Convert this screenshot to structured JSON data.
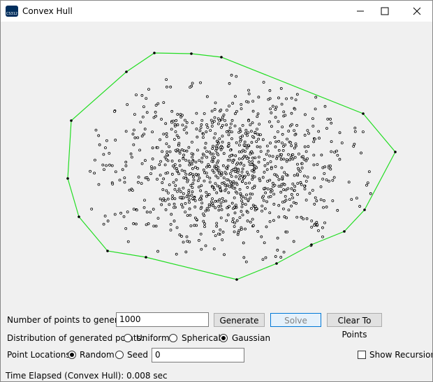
{
  "window": {
    "title": "Convex Hull",
    "icon_text": "CS312"
  },
  "controls": {
    "points_label": "Number of points to generate:",
    "points_value": "1000",
    "generate": "Generate",
    "solve": "Solve",
    "clear": "Clear To Points",
    "distribution_label": "Distribution of generated points:",
    "distributions": [
      "Uniform",
      "Spherical",
      "Gaussian"
    ],
    "locations_label": "Point Locations:",
    "locations": [
      "Random",
      "Seed"
    ],
    "seed_value": "0",
    "show_recursion": "Show Recursion"
  },
  "status": "Time Elapsed (Convex Hull): 0.008 sec"
}
